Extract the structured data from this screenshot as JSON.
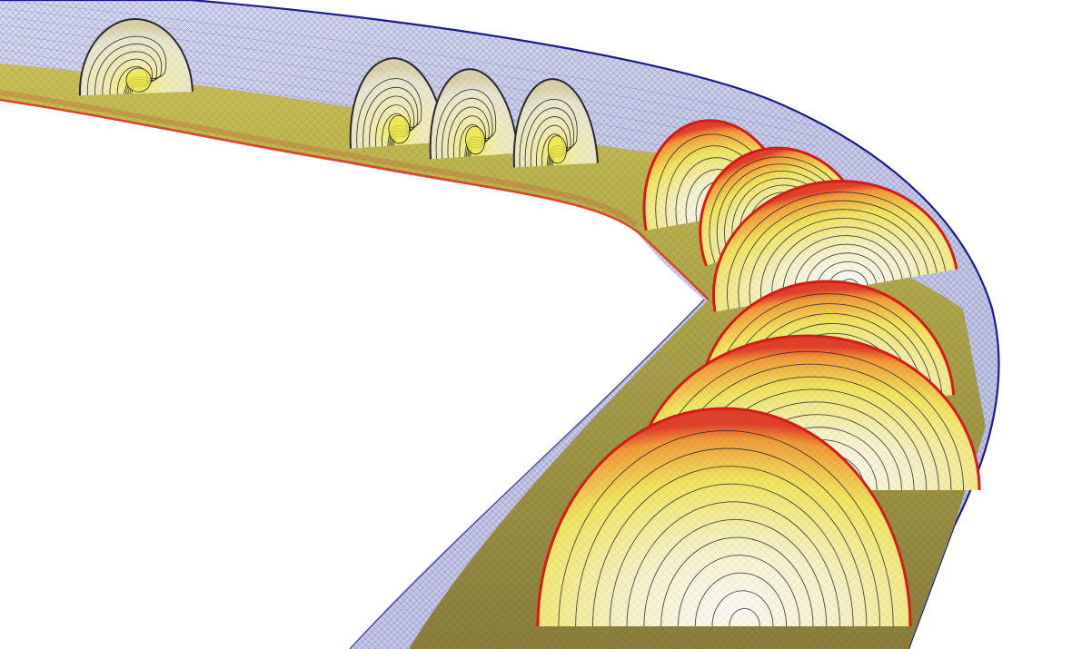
{
  "scene": {
    "subject": "",
    "colors": {
      "background": "#ffffff",
      "mesh_line": "#1c1c8a",
      "tube_fill": "#c9cde6",
      "floor_fill": "#b7b34a",
      "floor_outer_edge": "#d6452c",
      "section_edge": "#d81a14",
      "section_hot": "#f2d43a",
      "section_warm": "#f7ee8c",
      "section_cool": "#f4f2e6",
      "contour_line": "#1e1e1e"
    },
    "cross_sections_count": 10
  }
}
